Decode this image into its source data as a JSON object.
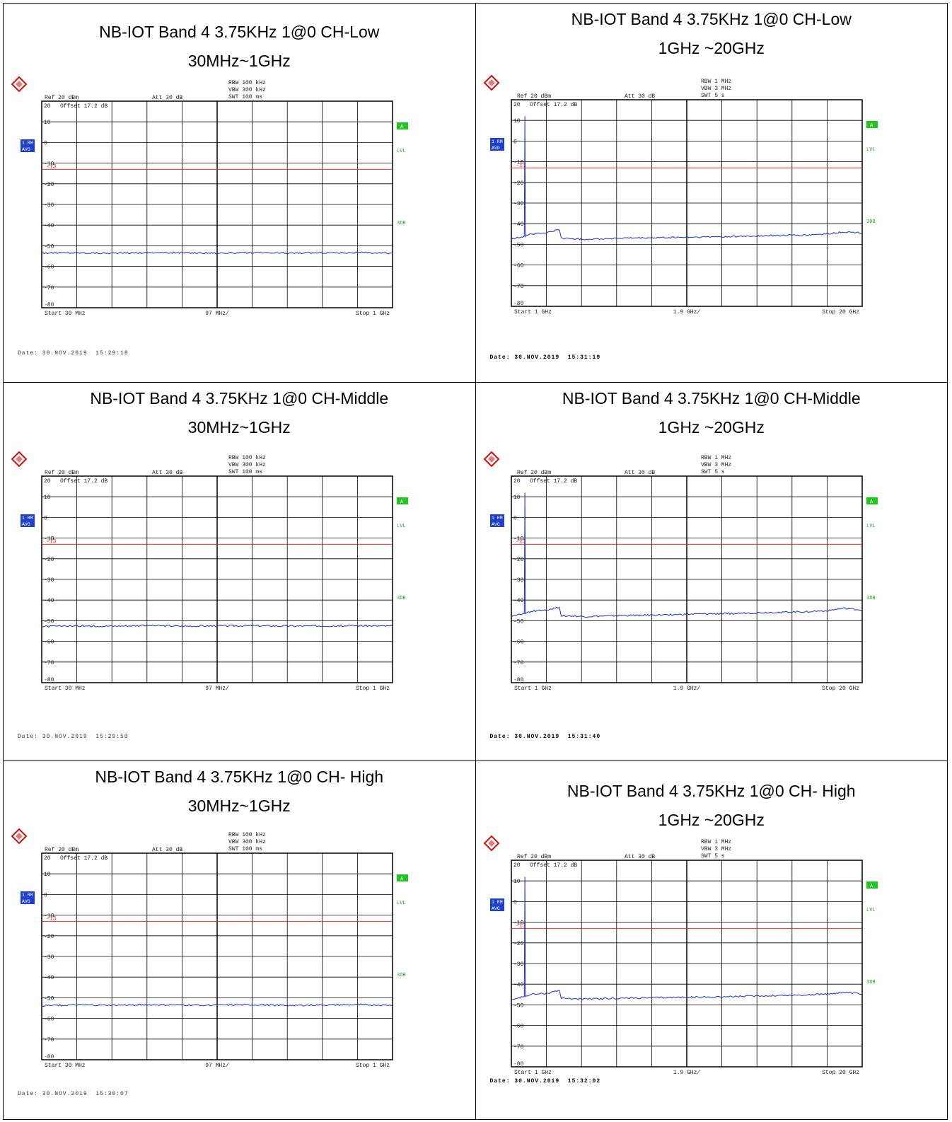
{
  "colors": {
    "trace": "#1a2fc8",
    "limit": "#e0302a",
    "grid": "#000000",
    "badge_green": "#21c521",
    "badge_blue": "#1f3fd0",
    "label_green": "#2aa02a",
    "logo_red": "#cc1111"
  },
  "panels": [
    {
      "title_line1": "NB-IOT Band 4 3.75KHz 1@0 CH-Low",
      "title_line2": "30MHz~1GHz",
      "date": "Date: 30.NOV.2019  15:29:18",
      "header": {
        "ref": "Ref  20 dBm",
        "att": "Att  30 dB",
        "rbw": "RBW 100 kHz",
        "vbw": "VBW 300 kHz",
        "swt": "SWT 100 ms"
      },
      "footer": {
        "start": "Start 30 MHz",
        "center": "97 MHz/",
        "stop": "Stop 1 GHz"
      },
      "offset": "Offset  17.2 dB",
      "side": {
        "rm": "1 RM",
        "avg": "AVG",
        "a": "A",
        "lvl": "LVL",
        "db3": "3DB"
      },
      "y_ticks": [
        "20",
        "10",
        "0",
        "-10",
        "-20",
        "-30",
        "-40",
        "-50",
        "-60",
        "-70",
        "-80"
      ],
      "limit_label": "-13"
    },
    {
      "title_line1": "NB-IOT Band 4 3.75KHz 1@0 CH-Low",
      "title_line2": "1GHz ~20GHz",
      "date": "Date: 30.NOV.2019  15:31:19",
      "header": {
        "ref": "Ref  20 dBm",
        "att": "Att  30 dB",
        "rbw": "RBW 1 MHz",
        "vbw": "VBW 3 MHz",
        "swt": "SWT 5 s"
      },
      "footer": {
        "start": "Start 1 GHz",
        "center": "1.9 GHz/",
        "stop": "Stop 20 GHz"
      },
      "offset": "Offset  17.2 dB",
      "side": {
        "rm": "1 RM",
        "avg": "AVG",
        "a": "A",
        "lvl": "LVL",
        "db3": "3DB"
      },
      "y_ticks": [
        "20",
        "10",
        "0",
        "-10",
        "-20",
        "-30",
        "-40",
        "-50",
        "-60",
        "-70",
        "-80"
      ],
      "limit_label": "-13"
    },
    {
      "title_line1": "NB-IOT Band 4 3.75KHz 1@0 CH-Middle",
      "title_line2": "30MHz~1GHz",
      "date": "Date: 30.NOV.2019  15:29:50",
      "header": {
        "ref": "Ref  20 dBm",
        "att": "Att  30 dB",
        "rbw": "RBW 100 kHz",
        "vbw": "VBW 300 kHz",
        "swt": "SWT 100 ms"
      },
      "footer": {
        "start": "Start 30 MHz",
        "center": "97 MHz/",
        "stop": "Stop 1 GHz"
      },
      "offset": "Offset  17.2 dB",
      "side": {
        "rm": "1 RM",
        "avg": "AVG",
        "a": "A",
        "lvl": "LVL",
        "db3": "3DB"
      },
      "y_ticks": [
        "20",
        "10",
        "0",
        "-10",
        "-20",
        "-30",
        "-40",
        "-50",
        "-60",
        "-70",
        "-80"
      ],
      "limit_label": "-13"
    },
    {
      "title_line1": "NB-IOT Band 4 3.75KHz 1@0 CH-Middle",
      "title_line2": "1GHz ~20GHz",
      "date": "Date: 30.NOV.2019  15:31:40",
      "header": {
        "ref": "Ref  20 dBm",
        "att": "Att  30 dB",
        "rbw": "RBW 1 MHz",
        "vbw": "VBW 3 MHz",
        "swt": "SWT 5 s"
      },
      "footer": {
        "start": "Start 1 GHz",
        "center": "1.9 GHz/",
        "stop": "Stop 20 GHz"
      },
      "offset": "Offset  17.2 dB",
      "side": {
        "rm": "1 RM",
        "avg": "AVG",
        "a": "A",
        "lvl": "LVL",
        "db3": "3DB"
      },
      "y_ticks": [
        "20",
        "10",
        "0",
        "-10",
        "-20",
        "-30",
        "-40",
        "-50",
        "-60",
        "-70",
        "-80"
      ],
      "limit_label": "-13"
    },
    {
      "title_line1": "NB-IOT Band 4 3.75KHz 1@0 CH- High",
      "title_line2": "30MHz~1GHz",
      "date": "Date: 30.NOV.2019  15:30:07",
      "header": {
        "ref": "Ref  20 dBm",
        "att": "Att  30 dB",
        "rbw": "RBW 100 kHz",
        "vbw": "VBW 300 kHz",
        "swt": "SWT 100 ms"
      },
      "footer": {
        "start": "Start 30 MHz",
        "center": "97 MHz/",
        "stop": "Stop 1 GHz"
      },
      "offset": "Offset  17.2 dB",
      "side": {
        "rm": "1 RM",
        "avg": "AVG",
        "a": "A",
        "lvl": "LVL",
        "db3": "3DB"
      },
      "y_ticks": [
        "20",
        "10",
        "0",
        "-10",
        "-20",
        "-30",
        "-40",
        "-50",
        "-60",
        "-70",
        "-80"
      ],
      "limit_label": "-13"
    },
    {
      "title_line1": "NB-IOT Band 4 3.75KHz 1@0 CH- High",
      "title_line2": "1GHz ~20GHz",
      "date": "Date: 30.NOV.2019  15:32:02",
      "header": {
        "ref": "Ref  20 dBm",
        "att": "Att  30 dB",
        "rbw": "RBW 1 MHz",
        "vbw": "VBW 3 MHz",
        "swt": "SWT 5 s"
      },
      "footer": {
        "start": "Start 1 GHz",
        "center": "1.9 GHz/",
        "stop": "Stop 20 GHz"
      },
      "offset": "Offset  17.2 dB",
      "side": {
        "rm": "1 RM",
        "avg": "AVG",
        "a": "A",
        "lvl": "LVL",
        "db3": "3DB"
      },
      "y_ticks": [
        "20",
        "10",
        "0",
        "-10",
        "-20",
        "-30",
        "-40",
        "-50",
        "-60",
        "-70",
        "-80"
      ],
      "limit_label": "-13"
    }
  ],
  "chart_data": [
    {
      "type": "line",
      "x_unit": "MHz",
      "y_unit": "dBm",
      "xlim": [
        30,
        1000
      ],
      "ylim": [
        -80,
        20
      ],
      "limit_dbm": -13,
      "series": [
        {
          "x": [
            30,
            127,
            224,
            321,
            418,
            515,
            612,
            709,
            806,
            903,
            1000
          ],
          "y": [
            -53.5,
            -53.4,
            -53.6,
            -53.3,
            -53.4,
            -53.5,
            -53.4,
            -53.6,
            -53.4,
            -53.3,
            -53.6
          ]
        }
      ]
    },
    {
      "type": "line",
      "x_unit": "GHz",
      "y_unit": "dBm",
      "xlim": [
        1,
        20
      ],
      "ylim": [
        -80,
        20
      ],
      "limit_dbm": -13,
      "series": [
        {
          "x": [
            1,
            1.7,
            1.73,
            1.76,
            2.0,
            2.9,
            3.3,
            3.6,
            3.7,
            5.0,
            7.0,
            9.0,
            11.0,
            13.0,
            15.0,
            17.0,
            18.0,
            19.0,
            20.0
          ],
          "y": [
            -47.5,
            -46,
            12,
            -46,
            -45,
            -44.5,
            -43.5,
            -43,
            -47,
            -47.5,
            -47,
            -46.8,
            -46.5,
            -46.2,
            -45.8,
            -45.5,
            -45,
            -44,
            -44.5
          ]
        }
      ]
    },
    {
      "type": "line",
      "x_unit": "MHz",
      "y_unit": "dBm",
      "xlim": [
        30,
        1000
      ],
      "ylim": [
        -80,
        20
      ],
      "limit_dbm": -13,
      "series": [
        {
          "x": [
            30,
            127,
            224,
            321,
            418,
            515,
            612,
            709,
            806,
            903,
            1000
          ],
          "y": [
            -52.8,
            -52.5,
            -52.6,
            -52.3,
            -52.6,
            -52.5,
            -52.4,
            -52.6,
            -52.5,
            -52.4,
            -52.6
          ]
        }
      ]
    },
    {
      "type": "line",
      "x_unit": "GHz",
      "y_unit": "dBm",
      "xlim": [
        1,
        20
      ],
      "ylim": [
        -80,
        20
      ],
      "limit_dbm": -13,
      "series": [
        {
          "x": [
            1,
            1.7,
            1.73,
            1.76,
            2.0,
            2.9,
            3.3,
            3.6,
            3.7,
            5.0,
            7.0,
            9.0,
            11.0,
            13.0,
            15.0,
            17.0,
            18.0,
            19.0,
            20.0
          ],
          "y": [
            -48,
            -46.5,
            12,
            -46.5,
            -45.5,
            -44.8,
            -44,
            -43.5,
            -47.5,
            -48,
            -47.5,
            -47.2,
            -46.8,
            -46.5,
            -46,
            -45.6,
            -45.2,
            -44,
            -44.8
          ]
        }
      ]
    },
    {
      "type": "line",
      "x_unit": "MHz",
      "y_unit": "dBm",
      "xlim": [
        30,
        1000
      ],
      "ylim": [
        -80,
        20
      ],
      "limit_dbm": -13,
      "series": [
        {
          "x": [
            30,
            127,
            224,
            321,
            418,
            515,
            612,
            709,
            806,
            903,
            1000
          ],
          "y": [
            -53.8,
            -53.5,
            -53.6,
            -53.4,
            -53.5,
            -53.6,
            -53.4,
            -53.7,
            -53.5,
            -53.4,
            -53.6
          ]
        }
      ]
    },
    {
      "type": "line",
      "x_unit": "GHz",
      "y_unit": "dBm",
      "xlim": [
        1,
        20
      ],
      "ylim": [
        -80,
        20
      ],
      "limit_dbm": -13,
      "series": [
        {
          "x": [
            1,
            1.7,
            1.73,
            1.76,
            2.0,
            2.9,
            3.3,
            3.6,
            3.7,
            5.0,
            7.0,
            9.0,
            11.0,
            13.0,
            15.0,
            17.0,
            18.0,
            19.0,
            20.0
          ],
          "y": [
            -47.5,
            -46,
            12,
            -46,
            -45,
            -44.5,
            -43.5,
            -43,
            -46.8,
            -47.2,
            -46.8,
            -46.5,
            -46.3,
            -46,
            -45.6,
            -45.2,
            -44.8,
            -44,
            -44.8
          ]
        }
      ]
    }
  ]
}
